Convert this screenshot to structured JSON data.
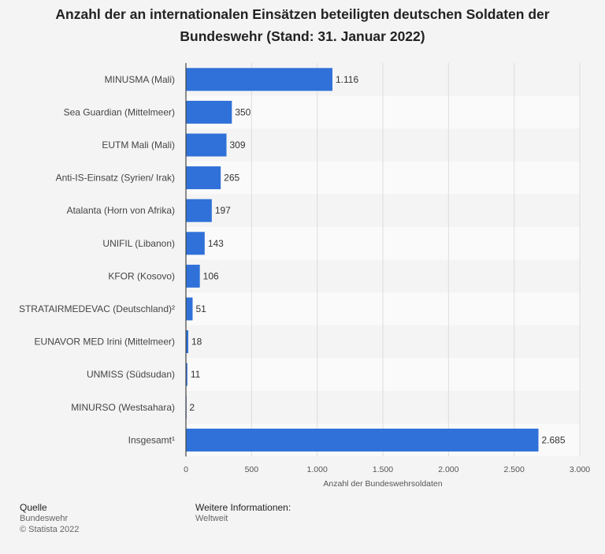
{
  "title": "Anzahl der an internationalen Einsätzen beteiligten deutschen Soldaten der Bundeswehr (Stand: 31. Januar 2022)",
  "colors": {
    "bar": "#2f71d8",
    "band": "#fafafa",
    "grid": "#dddddd",
    "axis": "#444444"
  },
  "chart_data": {
    "type": "bar",
    "orientation": "horizontal",
    "categories": [
      "MINUSMA (Mali)",
      "Sea Guardian (Mittelmeer)",
      "EUTM Mali (Mali)",
      "Anti-IS-Einsatz (Syrien/ Irak)",
      "Atalanta (Horn von Afrika)",
      "UNIFIL (Libanon)",
      "KFOR (Kosovo)",
      "STRATAIRMEDEVAC (Deutschland)²",
      "EUNAVOR MED Irini (Mittelmeer)",
      "UNMISS (Südsudan)",
      "MINURSO (Westsahara)",
      "Insgesamt¹"
    ],
    "values": [
      1116,
      350,
      309,
      265,
      197,
      143,
      106,
      51,
      18,
      11,
      2,
      2685
    ],
    "value_labels": [
      "1.116",
      "350",
      "309",
      "265",
      "197",
      "143",
      "106",
      "51",
      "18",
      "11",
      "2",
      "2.685"
    ],
    "xlim": [
      0,
      3000
    ],
    "xticks": [
      0,
      500,
      1000,
      1500,
      2000,
      2500,
      3000
    ],
    "xtick_labels": [
      "0",
      "500",
      "1.000",
      "1.500",
      "2.000",
      "2.500",
      "3.000"
    ],
    "xlabel": "Anzahl der Bundeswehrsoldaten",
    "grid": true
  },
  "footer": {
    "source_heading": "Quelle",
    "source": "Bundeswehr",
    "copyright": "© Statista 2022",
    "info_heading": "Weitere Informationen:",
    "info": "Weltweit"
  }
}
